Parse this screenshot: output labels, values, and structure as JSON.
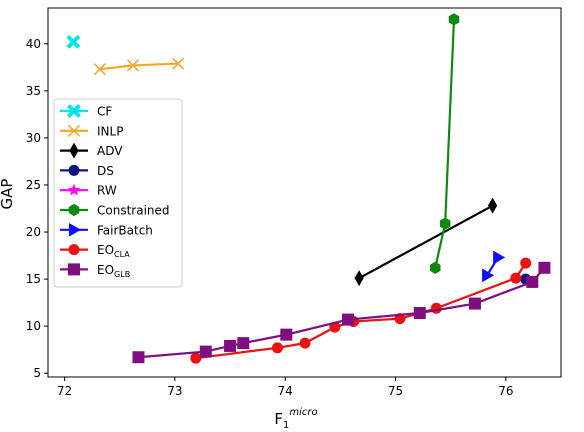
{
  "chart_data": {
    "type": "line",
    "xlabel": "F",
    "xlabel_sub": "1",
    "xlabel_sup": "micro",
    "ylabel": "GAP",
    "xlim": [
      71.85,
      76.5
    ],
    "ylim": [
      4.6,
      43.8
    ],
    "x_ticks": [
      72,
      73,
      74,
      75,
      76
    ],
    "y_ticks": [
      5,
      10,
      15,
      20,
      25,
      30,
      35,
      40
    ],
    "grid": false,
    "legend_position": "upper-left",
    "series": [
      {
        "name": "CF",
        "name_sub": "",
        "color": "#00e5e5",
        "marker": "x-thick",
        "points": [
          [
            72.08,
            40.2
          ]
        ]
      },
      {
        "name": "INLP",
        "name_sub": "",
        "color": "#f5a623",
        "marker": "x",
        "points": [
          [
            72.32,
            37.3
          ],
          [
            72.62,
            37.7
          ],
          [
            73.03,
            37.9
          ]
        ]
      },
      {
        "name": "ADV",
        "name_sub": "",
        "color": "#000000",
        "marker": "thin-diamond",
        "points": [
          [
            74.67,
            15.1
          ],
          [
            75.88,
            22.8
          ]
        ]
      },
      {
        "name": "DS",
        "name_sub": "",
        "color": "#0a1580",
        "marker": "circle",
        "points": [
          [
            76.18,
            15.0
          ]
        ]
      },
      {
        "name": "RW",
        "name_sub": "",
        "color": "#ff00ff",
        "marker": "star",
        "points": [
          [
            76.24,
            14.7
          ]
        ]
      },
      {
        "name": "Constrained",
        "name_sub": "",
        "color": "#118811",
        "marker": "hexagon",
        "points": [
          [
            75.36,
            16.2
          ],
          [
            75.45,
            20.9
          ],
          [
            75.53,
            42.6
          ]
        ]
      },
      {
        "name": "FairBatch",
        "name_sub": "",
        "color": "#1010ff",
        "marker": "triangle-right",
        "points": [
          [
            75.83,
            15.4
          ],
          [
            75.93,
            17.3
          ]
        ]
      },
      {
        "name": "EO",
        "name_sub": "CLA",
        "color": "#ee1111",
        "marker": "circle",
        "points": [
          [
            73.19,
            6.6
          ],
          [
            73.93,
            7.7
          ],
          [
            74.18,
            8.2
          ],
          [
            74.45,
            9.9
          ],
          [
            74.62,
            10.5
          ],
          [
            75.04,
            10.8
          ],
          [
            75.37,
            11.9
          ],
          [
            76.09,
            15.1
          ],
          [
            76.18,
            16.7
          ]
        ]
      },
      {
        "name": "EO",
        "name_sub": "GLB",
        "color": "#7f0f7f",
        "marker": "square",
        "points": [
          [
            72.67,
            6.7
          ],
          [
            73.28,
            7.3
          ],
          [
            73.5,
            7.9
          ],
          [
            73.62,
            8.2
          ],
          [
            74.01,
            9.1
          ],
          [
            74.57,
            10.7
          ],
          [
            75.22,
            11.4
          ],
          [
            75.72,
            12.4
          ],
          [
            76.24,
            14.7
          ],
          [
            76.35,
            16.2
          ]
        ]
      }
    ]
  }
}
